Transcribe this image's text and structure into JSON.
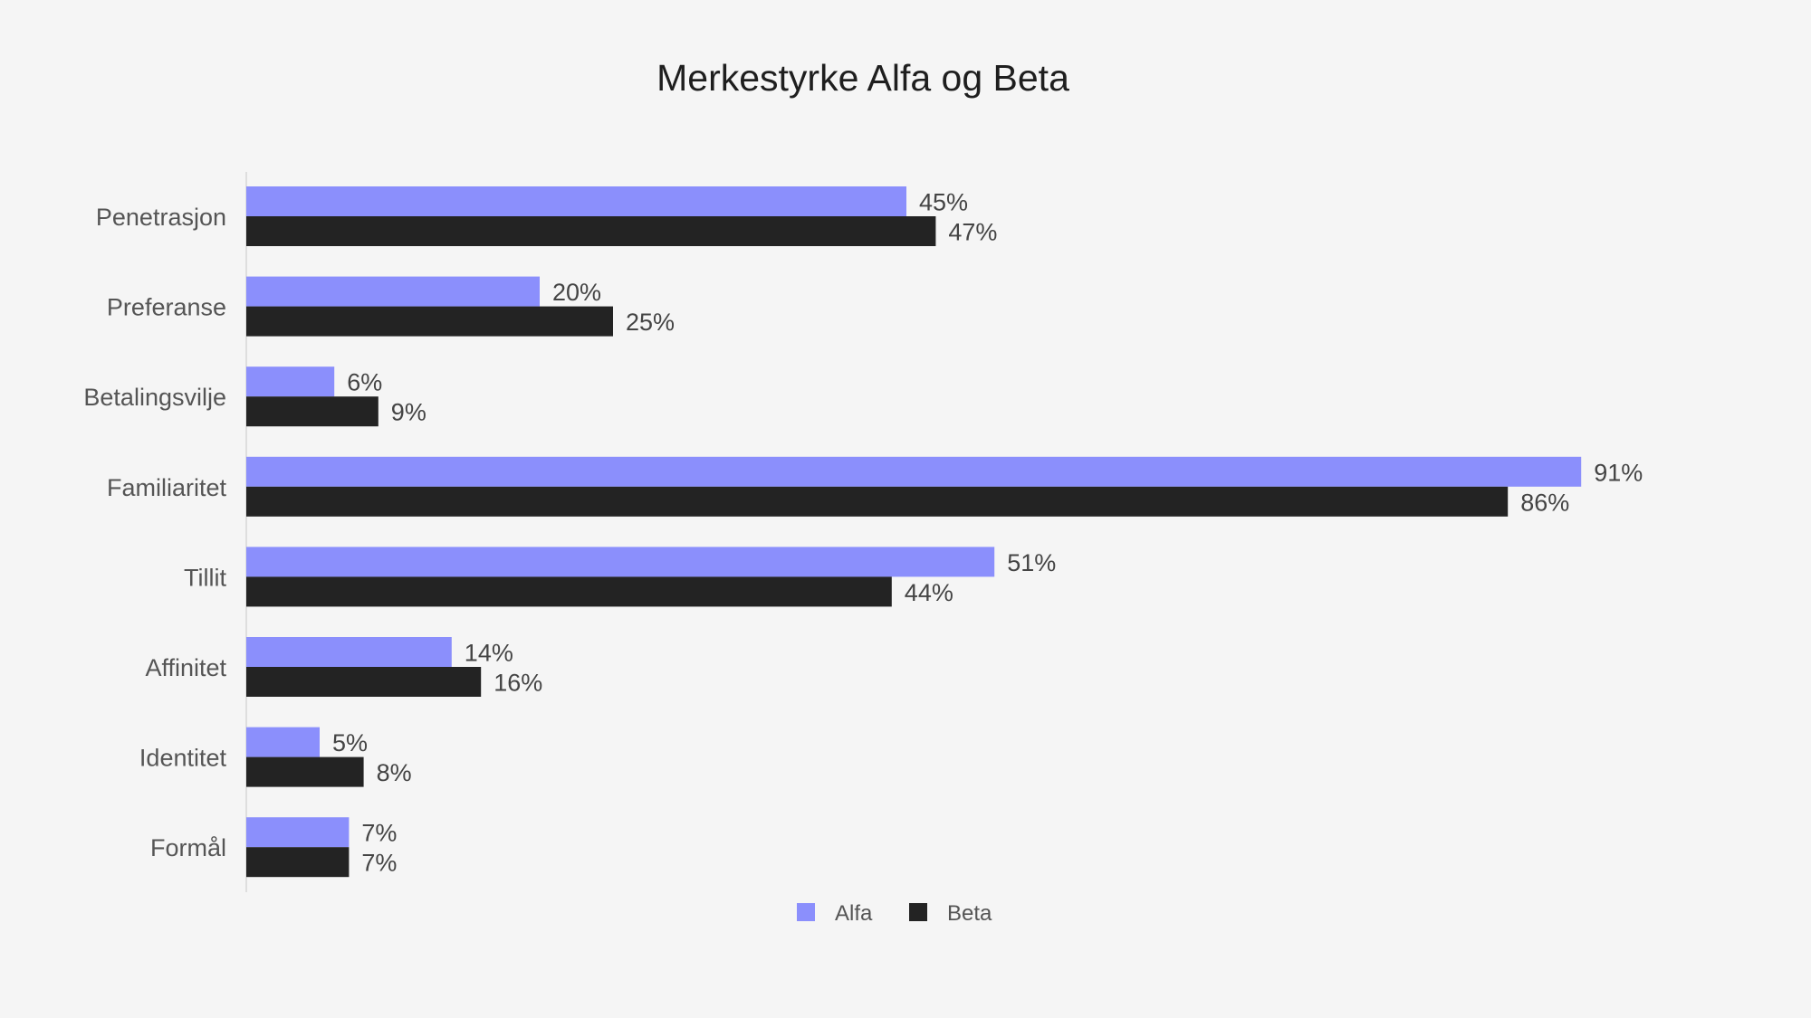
{
  "chart_data": {
    "type": "bar",
    "orientation": "horizontal",
    "title": "Merkestyrke Alfa og Beta",
    "categories": [
      "Penetrasjon",
      "Preferanse",
      "Betalingsvilje",
      "Familiaritet",
      "Tillit",
      "Affinitet",
      "Identitet",
      "Formål"
    ],
    "series": [
      {
        "name": "Alfa",
        "color": "#8b8ffc",
        "values": [
          45,
          20,
          6,
          91,
          51,
          14,
          5,
          7
        ],
        "labels": [
          "45%",
          "20%",
          "6%",
          "91%",
          "51%",
          "14%",
          "5%",
          "7%"
        ]
      },
      {
        "name": "Beta",
        "color": "#232323",
        "values": [
          47,
          25,
          9,
          86,
          44,
          16,
          8,
          7
        ],
        "labels": [
          "47%",
          "25%",
          "9%",
          "86%",
          "44%",
          "16%",
          "8%",
          "7%"
        ]
      }
    ],
    "xlim": [
      0,
      100
    ],
    "value_format": "percent",
    "grid": false,
    "legend_position": "bottom-center"
  }
}
